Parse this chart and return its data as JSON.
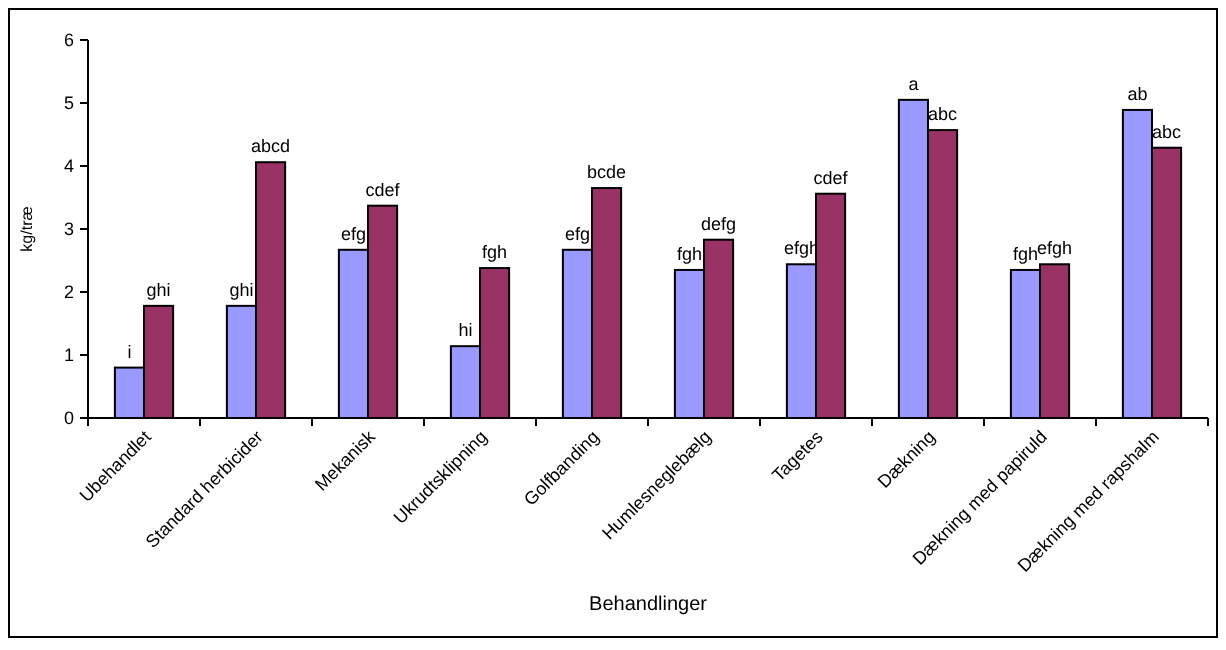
{
  "chart_data": {
    "type": "bar",
    "xlabel": "Behandlinger",
    "ylabel": "kg/træ",
    "categories": [
      "Ubehandlet",
      "Standard herbicider",
      "Mekanisk",
      "Ukrudtsklipning",
      "Golfbanding",
      "Humlesneglebælg",
      "Tagetes",
      "Dækning",
      "Dækning med papiruld",
      "Dækning med rapshalm"
    ],
    "series": [
      {
        "color": "#9999ff",
        "values": [
          0.8,
          1.78,
          2.67,
          1.14,
          2.67,
          2.35,
          2.44,
          5.05,
          2.35,
          4.89
        ],
        "value_labels": [
          "i",
          "ghi",
          "efg",
          "hi",
          "efg",
          "fgh",
          "efgh",
          "a",
          "fgh",
          "ab"
        ]
      },
      {
        "color": "#993366",
        "values": [
          1.78,
          4.06,
          3.37,
          2.38,
          3.65,
          2.83,
          3.56,
          4.57,
          2.44,
          4.29
        ],
        "value_labels": [
          "ghi",
          "abcd",
          "cdef",
          "fgh",
          "bcde",
          "defg",
          "cdef",
          "abc",
          "efgh",
          "abc"
        ]
      }
    ],
    "ylim": [
      0,
      6
    ],
    "yticks": [
      0,
      1,
      2,
      3,
      4,
      5,
      6
    ]
  }
}
